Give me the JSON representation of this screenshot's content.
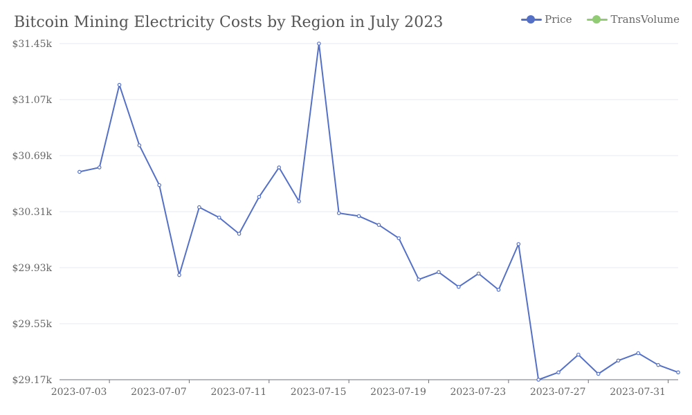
{
  "chart_data": {
    "type": "line",
    "title": "Bitcoin Mining Electricity Costs by Region in July 2023",
    "legend": [
      {
        "name": "Price",
        "color": "#5470c6"
      },
      {
        "name": "TransVolume",
        "color": "#91cc75"
      }
    ],
    "legend_position": "top-right",
    "grid": true,
    "y_ticks": [
      "$29.17k",
      "$29.55k",
      "$29.93k",
      "$30.31k",
      "$30.69k",
      "$31.07k",
      "$31.45k"
    ],
    "ylim": [
      29.17,
      31.45
    ],
    "x_tick_labels": [
      "2023-07-03",
      "2023-07-07",
      "2023-07-11",
      "2023-07-15",
      "2023-07-19",
      "2023-07-23",
      "2023-07-27",
      "2023-07-31"
    ],
    "xlim": [
      "2023-06-30",
      "2023-07-31"
    ],
    "series": [
      {
        "name": "Price",
        "color": "#5470c6",
        "x": [
          "2023-07-01",
          "2023-07-02",
          "2023-07-03",
          "2023-07-04",
          "2023-07-05",
          "2023-07-06",
          "2023-07-07",
          "2023-07-08",
          "2023-07-09",
          "2023-07-10",
          "2023-07-11",
          "2023-07-12",
          "2023-07-13",
          "2023-07-14",
          "2023-07-15",
          "2023-07-16",
          "2023-07-17",
          "2023-07-18",
          "2023-07-19",
          "2023-07-20",
          "2023-07-21",
          "2023-07-22",
          "2023-07-23",
          "2023-07-24",
          "2023-07-25",
          "2023-07-26",
          "2023-07-27",
          "2023-07-28",
          "2023-07-29",
          "2023-07-30",
          "2023-07-31"
        ],
        "values": [
          30.58,
          30.61,
          31.17,
          30.76,
          30.49,
          29.88,
          30.34,
          30.27,
          30.16,
          30.41,
          30.61,
          30.38,
          31.45,
          30.3,
          30.28,
          30.22,
          30.13,
          29.85,
          29.9,
          29.8,
          29.89,
          29.78,
          30.09,
          29.17,
          29.22,
          29.34,
          29.21,
          29.3,
          29.35,
          29.27,
          29.22
        ]
      }
    ]
  }
}
